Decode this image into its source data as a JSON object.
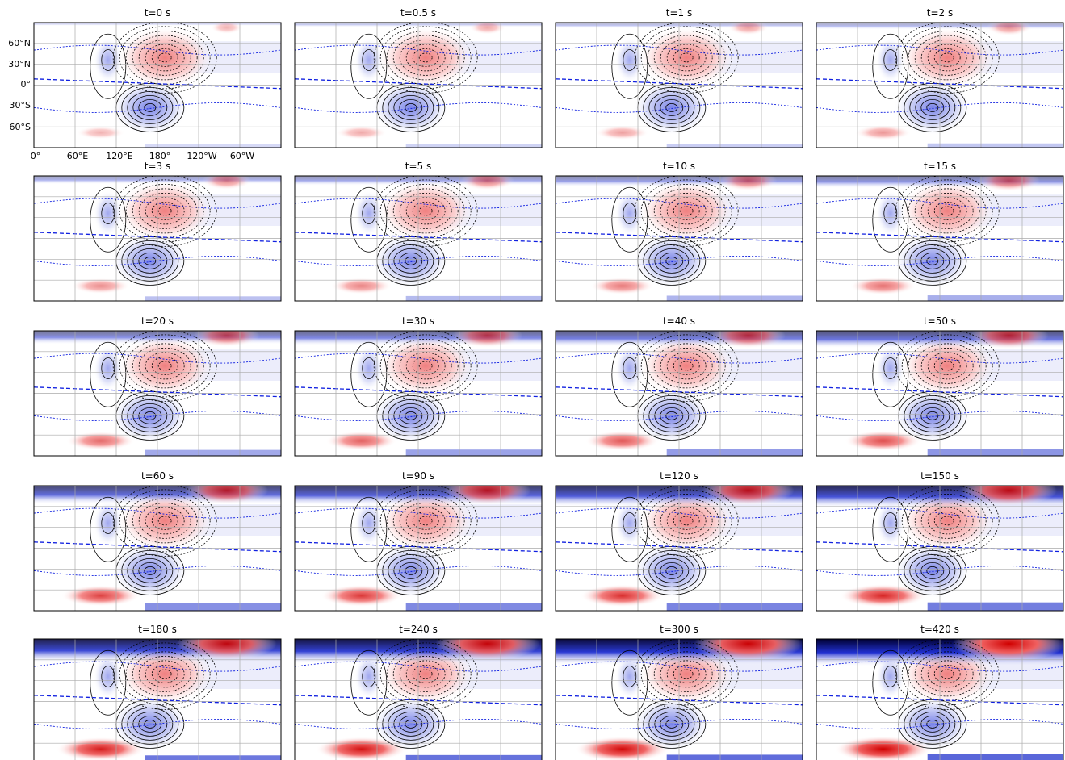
{
  "panels": [
    {
      "title": "t=0 s"
    },
    {
      "title": "t=0.5 s"
    },
    {
      "title": "t=1 s"
    },
    {
      "title": "t=2 s"
    },
    {
      "title": "t=3 s"
    },
    {
      "title": "t=5 s"
    },
    {
      "title": "t=10 s"
    },
    {
      "title": "t=15 s"
    },
    {
      "title": "t=20 s"
    },
    {
      "title": "t=30 s"
    },
    {
      "title": "t=40 s"
    },
    {
      "title": "t=50 s"
    },
    {
      "title": "t=60 s"
    },
    {
      "title": "t=90 s"
    },
    {
      "title": "t=120 s"
    },
    {
      "title": "t=150 s"
    },
    {
      "title": "t=180 s"
    },
    {
      "title": "t=240 s"
    },
    {
      "title": "t=300 s"
    },
    {
      "title": "t=420 s"
    }
  ],
  "latitude_labels": [
    "60°N",
    "30°N",
    "0°",
    "30°S",
    "60°S"
  ],
  "longitude_labels": [
    "0°",
    "60°E",
    "120°E",
    "180°",
    "120°W",
    "60°W"
  ]
}
